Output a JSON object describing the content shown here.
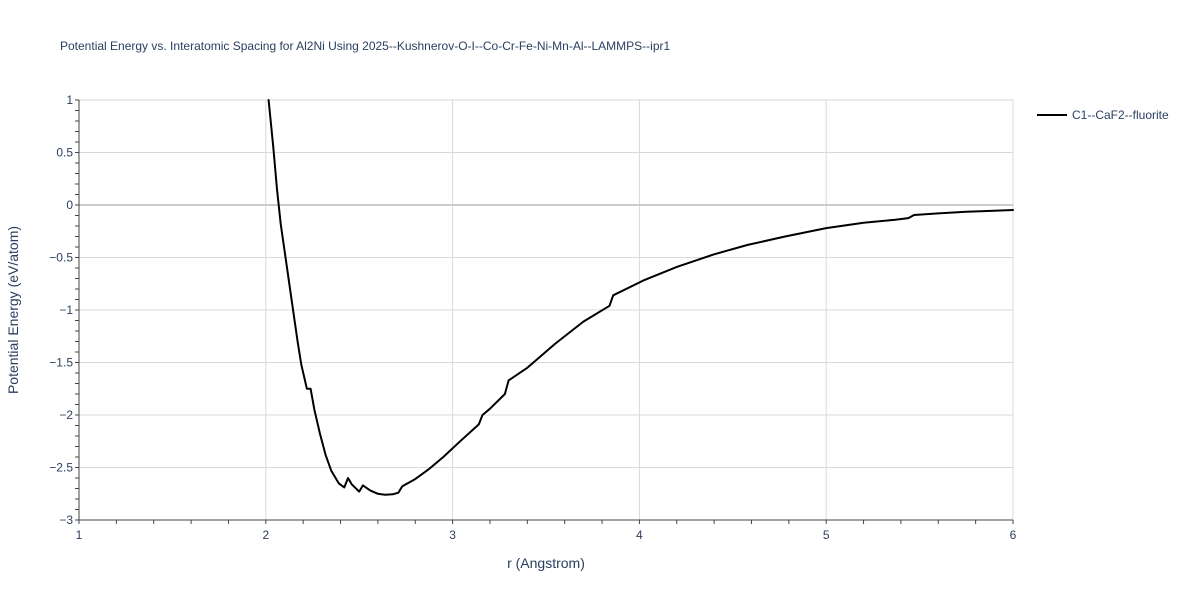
{
  "chart_data": {
    "type": "line",
    "title": "Potential Energy vs. Interatomic Spacing for Al2Ni Using 2025--Kushnerov-O-I--Co-Cr-Fe-Ni-Mn-Al--LAMMPS--ipr1",
    "xlabel": "r (Angstrom)",
    "ylabel": "Potential Energy (eV/atom)",
    "xlim": [
      1,
      6
    ],
    "ylim": [
      -3,
      1
    ],
    "x_ticks": [
      1,
      2,
      3,
      4,
      5,
      6
    ],
    "x_tick_labels": [
      "1",
      "2",
      "3",
      "4",
      "5",
      "6"
    ],
    "y_ticks": [
      1,
      0.5,
      0,
      -0.5,
      -1,
      -1.5,
      -2,
      -2.5,
      -3
    ],
    "y_tick_labels": [
      "1",
      "0.5",
      "0",
      "−0.5",
      "−1",
      "−1.5",
      "−2",
      "−2.5",
      "−3"
    ],
    "grid": true,
    "legend_position": "top-right",
    "series": [
      {
        "name": "C1--CaF2--fluorite",
        "color": "#000000",
        "x": [
          2.015,
          2.04,
          2.06,
          2.08,
          2.11,
          2.14,
          2.17,
          2.19,
          2.22,
          2.24,
          2.26,
          2.29,
          2.32,
          2.35,
          2.39,
          2.42,
          2.44,
          2.46,
          2.5,
          2.52,
          2.56,
          2.6,
          2.64,
          2.68,
          2.71,
          2.73,
          2.75,
          2.8,
          2.87,
          2.95,
          3.04,
          3.14,
          3.16,
          3.2,
          3.28,
          3.3,
          3.4,
          3.55,
          3.7,
          3.84,
          3.86,
          4.02,
          4.2,
          4.4,
          4.58,
          4.78,
          5.0,
          5.2,
          5.37,
          5.44,
          5.47,
          5.6,
          5.75,
          5.9,
          6.0
        ],
        "y": [
          1.0,
          0.55,
          0.15,
          -0.18,
          -0.55,
          -0.93,
          -1.3,
          -1.52,
          -1.75,
          -1.75,
          -1.95,
          -2.18,
          -2.38,
          -2.53,
          -2.65,
          -2.69,
          -2.6,
          -2.66,
          -2.73,
          -2.67,
          -2.72,
          -2.75,
          -2.76,
          -2.755,
          -2.74,
          -2.68,
          -2.66,
          -2.61,
          -2.52,
          -2.4,
          -2.25,
          -2.09,
          -2.0,
          -1.94,
          -1.8,
          -1.67,
          -1.55,
          -1.32,
          -1.11,
          -0.96,
          -0.86,
          -0.72,
          -0.59,
          -0.47,
          -0.38,
          -0.3,
          -0.22,
          -0.17,
          -0.14,
          -0.125,
          -0.095,
          -0.08,
          -0.065,
          -0.055,
          -0.048
        ]
      }
    ]
  }
}
